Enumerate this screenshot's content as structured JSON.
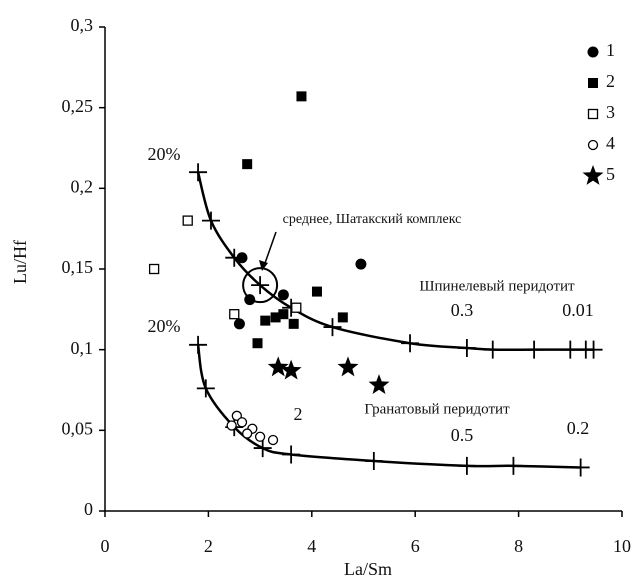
{
  "chart_data": {
    "type": "scatter",
    "xlabel": "La/Sm",
    "ylabel": "Lu/Hf",
    "xlim": [
      0,
      10
    ],
    "ylim": [
      0,
      0.3
    ],
    "xticks": [
      0,
      2,
      4,
      6,
      8,
      10
    ],
    "yticks": [
      0,
      {
        "value": 0.05,
        "label": "0,05"
      },
      {
        "value": 0.1,
        "label": "0,1"
      },
      {
        "value": 0.15,
        "label": "0,15"
      },
      {
        "value": 0.2,
        "label": "0,2"
      },
      {
        "value": 0.25,
        "label": "0,25"
      },
      {
        "value": 0.3,
        "label": "0,3"
      }
    ],
    "legend": "top-right",
    "series": [
      {
        "name": "1",
        "marker": "circle-filled",
        "color": "#000000",
        "x": [
          2.65,
          2.6,
          2.8,
          3.45,
          4.95
        ],
        "y": [
          0.157,
          0.116,
          0.131,
          0.134,
          0.153
        ]
      },
      {
        "name": "2",
        "marker": "square-filled",
        "color": "#000000",
        "x": [
          3.8,
          2.75,
          4.1,
          3.3,
          3.45,
          3.1,
          3.65,
          4.6,
          2.95
        ],
        "y": [
          0.257,
          0.215,
          0.136,
          0.12,
          0.122,
          0.118,
          0.116,
          0.12,
          0.104
        ]
      },
      {
        "name": "3",
        "marker": "square-open",
        "color": "#000000",
        "x": [
          0.95,
          1.6,
          2.5,
          3.7
        ],
        "y": [
          0.15,
          0.18,
          0.122,
          0.126
        ]
      },
      {
        "name": "4",
        "marker": "circle-open",
        "color": "#000000",
        "x": [
          2.45,
          2.55,
          2.65,
          2.85,
          3.0,
          3.25,
          2.75
        ],
        "y": [
          0.053,
          0.059,
          0.055,
          0.051,
          0.046,
          0.044,
          0.048
        ]
      },
      {
        "name": "5",
        "marker": "star",
        "color": "#000000",
        "x": [
          3.35,
          3.6,
          4.7,
          5.3
        ],
        "y": [
          0.089,
          0.087,
          0.089,
          0.078
        ]
      }
    ],
    "curves": [
      {
        "x": [
          1.8,
          2.05,
          2.5,
          3.0,
          3.6,
          4.4,
          5.9,
          7.0,
          7.5,
          8.3,
          9.0,
          9.3,
          9.45
        ],
        "y": [
          0.21,
          0.18,
          0.157,
          0.14,
          0.126,
          0.114,
          0.104,
          0.101,
          0.1,
          0.1,
          0.1,
          0.1,
          0.1
        ]
      },
      {
        "x": [
          1.8,
          1.95,
          2.5,
          3.05,
          3.6,
          5.2,
          7.0,
          7.9,
          9.2
        ],
        "y": [
          0.103,
          0.076,
          0.052,
          0.039,
          0.035,
          0.031,
          0.028,
          0.028,
          0.027
        ]
      }
    ],
    "annotations": [
      "20%",
      "20%",
      "среднее, Шатакский комплекс",
      "Шпинелевый перидотит",
      "0.3",
      "0.01",
      "Гранатовый перидотит",
      "0.5",
      "0.2",
      "2"
    ]
  }
}
